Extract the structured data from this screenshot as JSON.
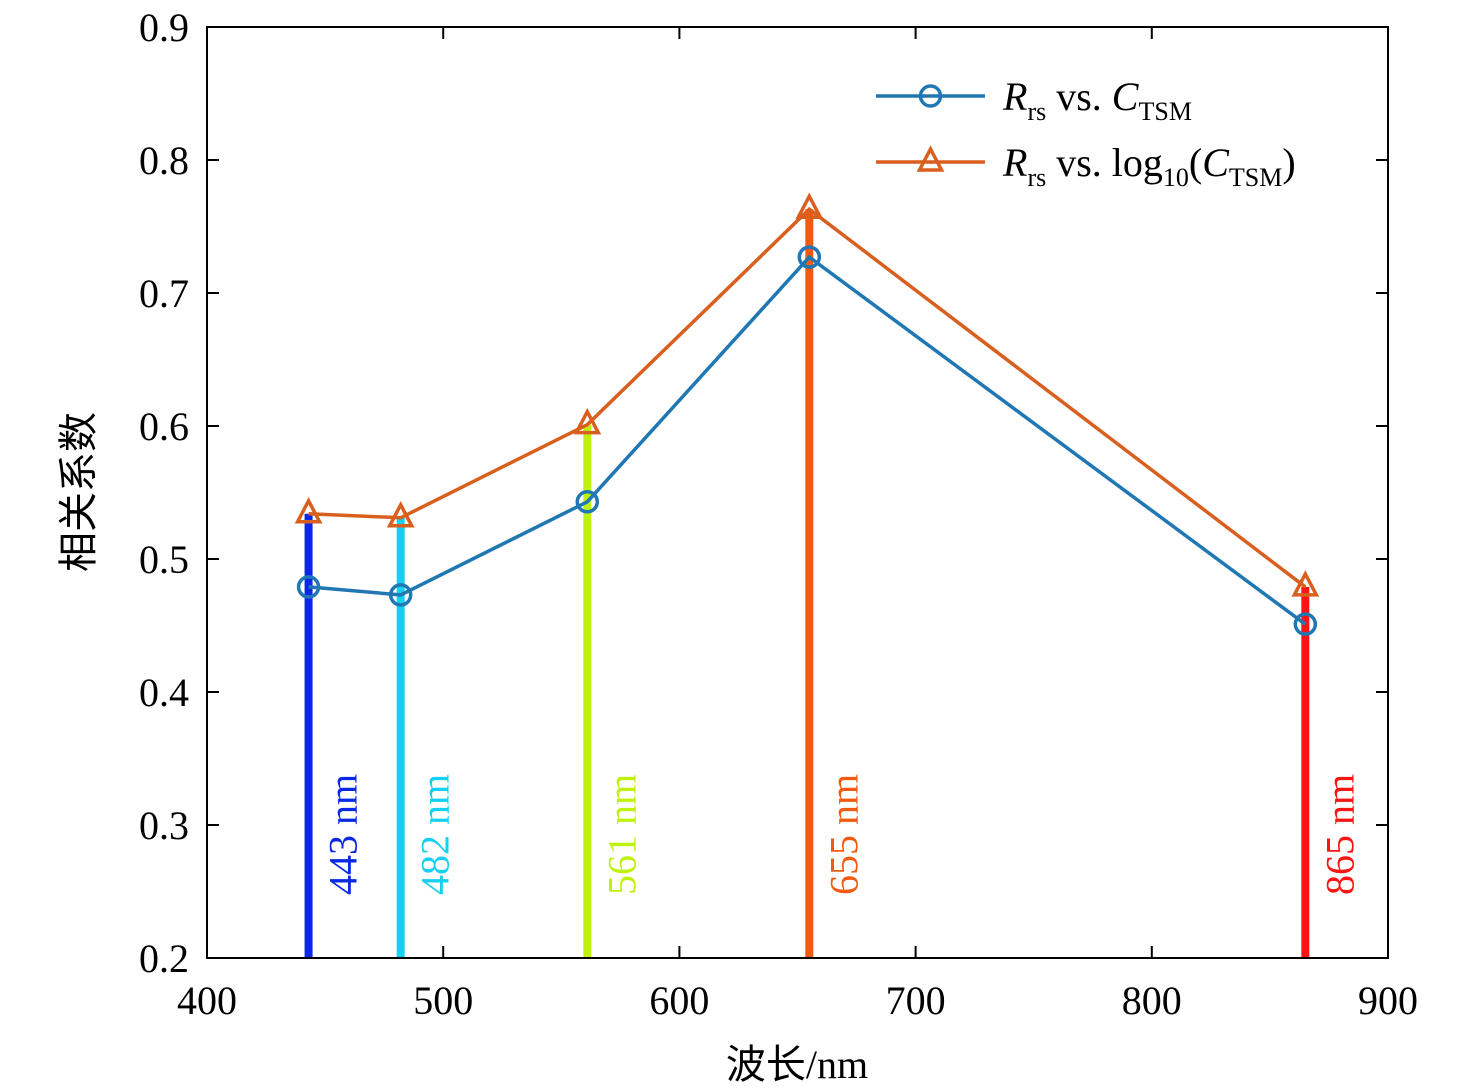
{
  "chart_data": {
    "type": "line",
    "xlabel": "波长/nm",
    "ylabel": "相关系数",
    "xlim": [
      400,
      900
    ],
    "ylim": [
      0.2,
      0.9
    ],
    "x_ticks": [
      "400",
      "500",
      "600",
      "700",
      "800",
      "900"
    ],
    "y_ticks": [
      "0.2",
      "0.3",
      "0.4",
      "0.5",
      "0.6",
      "0.7",
      "0.8",
      "0.9"
    ],
    "grid": false,
    "legend_position": "top-right",
    "x": [
      443,
      482,
      561,
      655,
      865
    ],
    "series": [
      {
        "name": "Rrs vs. CTSM",
        "legend": {
          "main": "R",
          "sub1": "rs",
          "mid": " vs. ",
          "main2": "C",
          "sub2": "TSM",
          "tail": ""
        },
        "color": "#1f77b4",
        "marker": "circle",
        "values": [
          0.479,
          0.473,
          0.543,
          0.727,
          0.451
        ]
      },
      {
        "name": "Rrs vs. log10(CTSM)",
        "legend": {
          "main": "R",
          "sub1": "rs",
          "mid": " vs. log",
          "sub_log": "10",
          "open": "(",
          "main2": "C",
          "sub2": "TSM",
          "tail": ")"
        },
        "color": "#d95f1e",
        "marker": "triangle",
        "values": [
          0.534,
          0.531,
          0.601,
          0.763,
          0.479
        ]
      }
    ],
    "bands": [
      {
        "x": 443,
        "label": "443 nm",
        "color": "#0a28e6",
        "top": 0.534
      },
      {
        "x": 482,
        "label": "482 nm",
        "color": "#16d0f2",
        "top": 0.531
      },
      {
        "x": 561,
        "label": "561 nm",
        "color": "#bff20a",
        "top": 0.601
      },
      {
        "x": 655,
        "label": "655 nm",
        "color": "#f25a12",
        "top": 0.763
      },
      {
        "x": 865,
        "label": "865 nm",
        "color": "#fa1414",
        "top": 0.479
      }
    ]
  }
}
